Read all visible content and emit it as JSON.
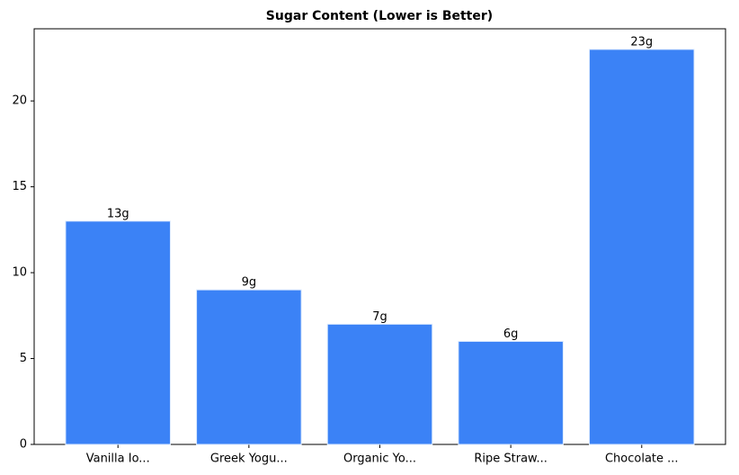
{
  "chart_data": {
    "type": "bar",
    "title": "Sugar Content (Lower is Better)",
    "categories": [
      "Vanilla Io...",
      "Greek Yogu...",
      "Organic Yo...",
      "Ripe Straw...",
      "Chocolate ..."
    ],
    "values": [
      13,
      9,
      7,
      6,
      23
    ],
    "value_labels": [
      "13g",
      "9g",
      "7g",
      "6g",
      "23g"
    ],
    "color": "#3b82f6",
    "ylim": [
      0,
      24.2
    ],
    "yticks": [
      0,
      5,
      10,
      15,
      20
    ],
    "grid": false
  }
}
